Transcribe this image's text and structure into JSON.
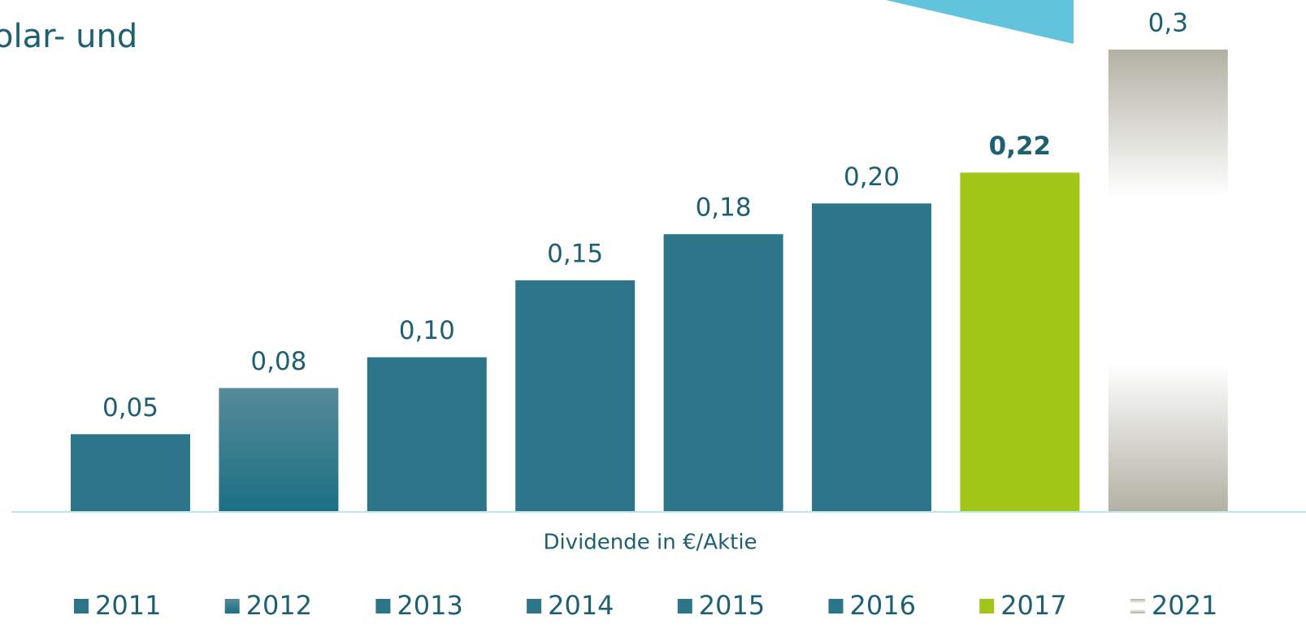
{
  "chart_data": {
    "type": "bar",
    "annotation": "olar- und",
    "xlabel": "Dividende in €/Aktie",
    "categories": [
      "2011",
      "2012",
      "2013",
      "2014",
      "2015",
      "2016",
      "2017",
      "2021"
    ],
    "values": [
      0.05,
      0.08,
      0.1,
      0.15,
      0.18,
      0.2,
      0.22,
      0.3
    ],
    "value_labels": [
      "0,05",
      "0,08",
      "0,10",
      "0,15",
      "0,18",
      "0,20",
      "0,22",
      "0,3"
    ],
    "colors": [
      "#2d7689",
      [
        "#558b9a",
        "#1c6f83"
      ],
      "#2d7689",
      "#2d7689",
      "#2d7689",
      "#2d7689",
      "#a2c617",
      [
        "#b2b1a4",
        "#ffffff",
        "#ffffff",
        "#b2b1a4"
      ]
    ],
    "ylim": [
      0,
      0.3
    ],
    "legend": "bottom"
  }
}
